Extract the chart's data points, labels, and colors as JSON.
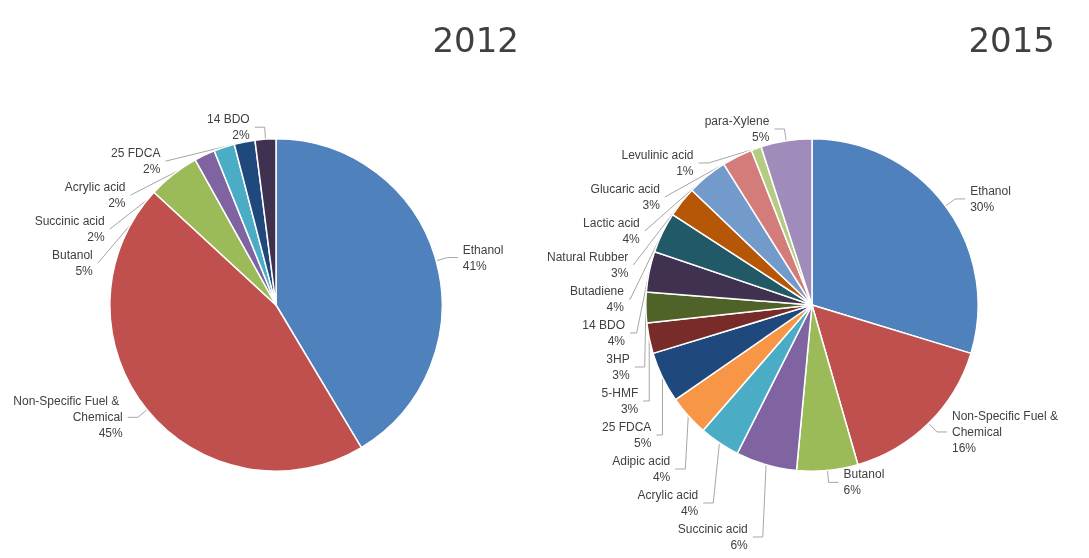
{
  "chart_data": [
    {
      "type": "pie",
      "title": "2012",
      "categories": [
        "Ethanol",
        "Non-Specific Fuel & Chemical",
        "Butanol",
        "Succinic acid",
        "Acrylic acid",
        "25 FDCA",
        "14 BDO"
      ],
      "values": [
        41,
        45,
        5,
        2,
        2,
        2,
        2
      ],
      "value_labels": [
        "41%",
        "45%",
        "5%",
        "2%",
        "2%",
        "2%",
        "2%"
      ],
      "colors": [
        "#4f81bd",
        "#c0504d",
        "#9bbb59",
        "#8064a2",
        "#4bacc6",
        "#1f497d",
        "#403151"
      ],
      "legend": false
    },
    {
      "type": "pie",
      "title": "2015",
      "categories": [
        "Ethanol",
        "Non-Specific Fuel & Chemical",
        "Butanol",
        "Succinic acid",
        "Acrylic acid",
        "Adipic acid",
        "25 FDCA",
        "5-HMF",
        "3HP",
        "14 BDO",
        "Butadiene",
        "Natural Rubber",
        "Lactic acid",
        "Glucaric acid",
        "Levulinic acid",
        "para-Xylene"
      ],
      "values": [
        30,
        16,
        6,
        6,
        4,
        4,
        5,
        3,
        3,
        4,
        4,
        3,
        4,
        3,
        1,
        5
      ],
      "value_labels": [
        "30%",
        "16%",
        "6%",
        "6%",
        "4%",
        "4%",
        "5%",
        "3%",
        "3%",
        "4%",
        "4%",
        "3%",
        "4%",
        "3%",
        "1%",
        "5%"
      ],
      "colors": [
        "#4f81bd",
        "#c0504d",
        "#9bbb59",
        "#8064a2",
        "#4bacc6",
        "#f79646",
        "#1f497d",
        "#772c2a",
        "#4f6228",
        "#403151",
        "#215967",
        "#b65708",
        "#729aca",
        "#d37c7a",
        "#b3cc82",
        "#a08cbb"
      ],
      "legend": false
    }
  ]
}
